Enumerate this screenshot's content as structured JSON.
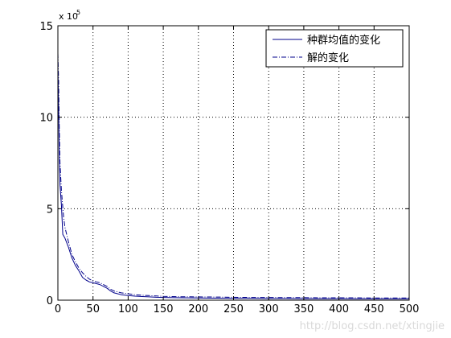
{
  "chart_data": {
    "type": "line",
    "title": "",
    "xlabel": "",
    "ylabel": "",
    "multiplier_base": "x 10",
    "multiplier_exponent": "5",
    "xlim": [
      0,
      500
    ],
    "ylim": [
      0,
      15
    ],
    "xticks": [
      0,
      50,
      100,
      150,
      200,
      250,
      300,
      350,
      400,
      450,
      500
    ],
    "yticks": [
      0,
      5,
      10,
      15
    ],
    "grid": true,
    "legend_position": "top-right",
    "series": [
      {
        "name": "种群均值的变化",
        "color": "#00008B",
        "style": "solid",
        "x": [
          0,
          1,
          2,
          3,
          5,
          7,
          10,
          15,
          20,
          25,
          30,
          35,
          40,
          45,
          50,
          55,
          60,
          65,
          70,
          75,
          80,
          85,
          90,
          100,
          110,
          120,
          130,
          140,
          150,
          175,
          200,
          225,
          250,
          275,
          300,
          325,
          350,
          375,
          400,
          425,
          450,
          475,
          500
        ],
        "y": [
          12.8,
          10.5,
          8.0,
          6.3,
          5.2,
          3.6,
          3.4,
          2.9,
          2.3,
          1.9,
          1.6,
          1.25,
          1.1,
          1.0,
          0.95,
          0.9,
          0.85,
          0.75,
          0.65,
          0.5,
          0.4,
          0.35,
          0.3,
          0.25,
          0.22,
          0.2,
          0.18,
          0.16,
          0.15,
          0.13,
          0.12,
          0.11,
          0.1,
          0.1,
          0.09,
          0.09,
          0.08,
          0.08,
          0.08,
          0.07,
          0.07,
          0.07,
          0.07
        ]
      },
      {
        "name": "解的变化",
        "color": "#00008B",
        "style": "dashdot",
        "x": [
          0,
          1,
          2,
          3,
          5,
          8,
          10,
          15,
          20,
          25,
          30,
          35,
          40,
          45,
          50,
          55,
          60,
          65,
          70,
          75,
          80,
          90,
          100,
          110,
          120,
          130,
          140,
          150,
          175,
          200,
          225,
          250,
          275,
          300,
          325,
          350,
          375,
          400,
          425,
          450,
          475,
          500
        ],
        "y": [
          13.5,
          12.0,
          9.5,
          7.5,
          6.0,
          4.6,
          4.0,
          3.2,
          2.5,
          2.1,
          1.75,
          1.5,
          1.3,
          1.15,
          1.05,
          1.0,
          0.95,
          0.85,
          0.75,
          0.6,
          0.5,
          0.4,
          0.35,
          0.3,
          0.27,
          0.25,
          0.23,
          0.21,
          0.19,
          0.18,
          0.17,
          0.16,
          0.15,
          0.15,
          0.14,
          0.14,
          0.13,
          0.13,
          0.13,
          0.12,
          0.12,
          0.12
        ]
      }
    ]
  },
  "watermark": "http://blog.csdn.net/xtingjie"
}
